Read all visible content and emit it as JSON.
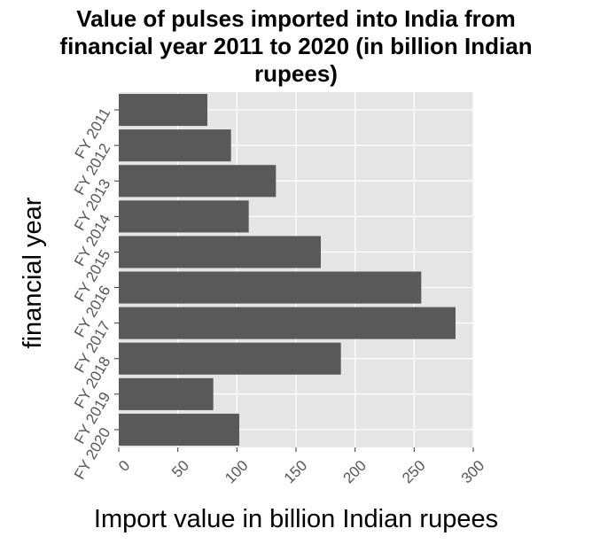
{
  "chart_data": {
    "type": "bar",
    "orientation": "horizontal",
    "title_lines": [
      "Value of pulses imported into India from",
      "financial year 2011 to 2020 (in billion Indian",
      "rupees)"
    ],
    "xlabel": "Import value in billion Indian rupees",
    "ylabel": "financial year",
    "categories": [
      "FY 2011",
      "FY 2012",
      "FY 2013",
      "FY 2014",
      "FY 2015",
      "FY 2016",
      "FY 2017",
      "FY 2018",
      "FY 2019",
      "FY 2020"
    ],
    "values": [
      75,
      95,
      133,
      110,
      171,
      256,
      285,
      188,
      80,
      102
    ],
    "xlim": [
      0,
      300
    ],
    "xticks": [
      "0",
      "50",
      "100",
      "150",
      "200",
      "250",
      "300"
    ],
    "grid": true,
    "legend": "none",
    "colors": {
      "bar": "#595959",
      "panel": "#e5e5e5",
      "grid": "#ffffff"
    }
  }
}
